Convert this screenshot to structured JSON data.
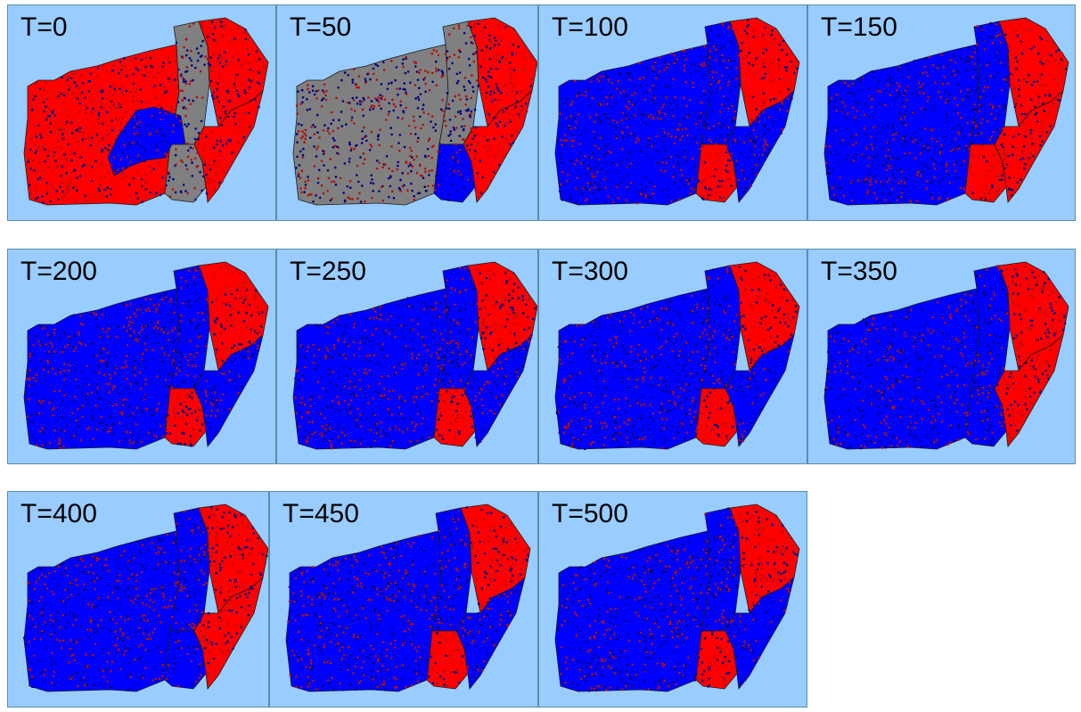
{
  "colors": {
    "background": "#99ccff",
    "party_red": "#ff0000",
    "party_blue": "#0000ff",
    "unassigned_gray": "#808080",
    "dot_red": "#b01010",
    "dot_blue": "#000080"
  },
  "region_names": [
    "west",
    "center",
    "northeast",
    "south-center",
    "southeast"
  ],
  "panels": [
    {
      "label": "T=0",
      "regions": {
        "west": "red",
        "center": "gray",
        "northeast": "red",
        "south-center": "gray",
        "southeast": "red"
      },
      "blue_inset": true
    },
    {
      "label": "T=50",
      "regions": {
        "west": "gray",
        "center": "gray",
        "northeast": "red",
        "south-center": "blue",
        "southeast": "red"
      }
    },
    {
      "label": "T=100",
      "regions": {
        "west": "blue",
        "center": "blue",
        "northeast": "red",
        "south-center": "red",
        "southeast": "blue"
      }
    },
    {
      "label": "T=150",
      "regions": {
        "west": "blue",
        "center": "blue",
        "northeast": "red",
        "south-center": "red",
        "southeast": "red"
      }
    },
    {
      "label": "T=200",
      "regions": {
        "west": "blue",
        "center": "blue",
        "northeast": "red",
        "south-center": "red",
        "southeast": "blue"
      }
    },
    {
      "label": "T=250",
      "regions": {
        "west": "blue",
        "center": "blue",
        "northeast": "red",
        "south-center": "red",
        "southeast": "blue"
      }
    },
    {
      "label": "T=300",
      "regions": {
        "west": "blue",
        "center": "blue",
        "northeast": "red",
        "south-center": "red",
        "southeast": "blue"
      }
    },
    {
      "label": "T=350",
      "regions": {
        "west": "blue",
        "center": "blue",
        "northeast": "red",
        "south-center": "blue",
        "southeast": "red"
      }
    },
    {
      "label": "T=400",
      "regions": {
        "west": "blue",
        "center": "blue",
        "northeast": "red",
        "south-center": "blue",
        "southeast": "red"
      }
    },
    {
      "label": "T=450",
      "regions": {
        "west": "blue",
        "center": "blue",
        "northeast": "red",
        "south-center": "red",
        "southeast": "blue"
      }
    },
    {
      "label": "T=500",
      "regions": {
        "west": "blue",
        "center": "blue",
        "northeast": "red",
        "south-center": "red",
        "southeast": "blue"
      }
    }
  ]
}
